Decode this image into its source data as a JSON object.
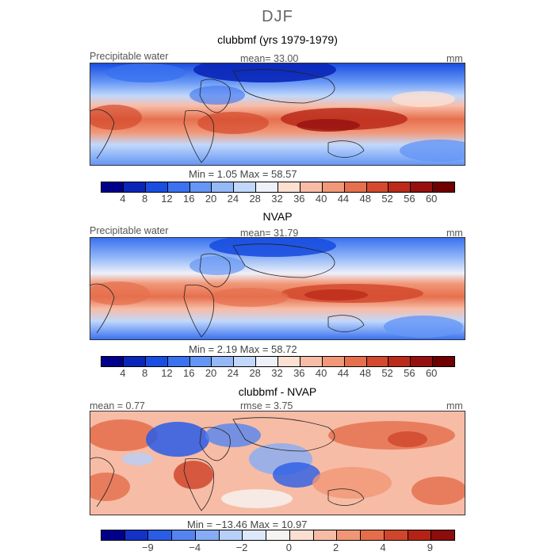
{
  "season_title": "DJF",
  "panels": [
    {
      "title": "clubbmf (yrs 1979-1979)",
      "left_label": "Precipitable water",
      "center_label": "mean=  33.00",
      "right_label": "mm",
      "min_max": "Min =    1.05  Max =   58.57"
    },
    {
      "title": "NVAP",
      "left_label": "Precipitable water",
      "center_label": "mean=  31.79",
      "right_label": "mm",
      "min_max": "Min =    2.19  Max =   58.72"
    },
    {
      "title": "clubbmf - NVAP",
      "left_label": "mean =   0.77",
      "center_label": "rmse =    3.75",
      "right_label": "mm",
      "min_max": "Min = −13.46  Max =   10.97"
    }
  ],
  "colorbars": {
    "full": {
      "colors": [
        "#00008b",
        "#0a26b8",
        "#1a4ee0",
        "#3a72f0",
        "#6596f5",
        "#95b9f7",
        "#c1d8fb",
        "#eef0fa",
        "#fce0d2",
        "#f8bca6",
        "#f19878",
        "#e6704e",
        "#d44a2e",
        "#bb2a1a",
        "#961010",
        "#6e0000"
      ],
      "ticks": [
        "4",
        "8",
        "12",
        "16",
        "20",
        "24",
        "28",
        "32",
        "36",
        "40",
        "44",
        "48",
        "52",
        "56",
        "60"
      ]
    },
    "diff": {
      "colors": [
        "#00008b",
        "#1232c8",
        "#2a5ce6",
        "#5484f0",
        "#86acf5",
        "#b7d0fa",
        "#dde8fb",
        "#f6f4f2",
        "#fbdfd0",
        "#f7bca5",
        "#f09676",
        "#e46d4b",
        "#d0462c",
        "#b42416",
        "#8d0c0c"
      ],
      "ticks": [
        "−9",
        "−4",
        "−2",
        "0",
        "2",
        "4",
        "9"
      ]
    }
  },
  "chart_data": [
    {
      "type": "heatmap",
      "title": "clubbmf (yrs 1979-1979)",
      "variable": "Precipitable water",
      "units": "mm",
      "mean": 33.0,
      "min": 1.05,
      "max": 58.57,
      "colorbar_ticks": [
        4,
        8,
        12,
        16,
        20,
        24,
        28,
        32,
        36,
        40,
        44,
        48,
        52,
        56,
        60
      ]
    },
    {
      "type": "heatmap",
      "title": "NVAP",
      "variable": "Precipitable water",
      "units": "mm",
      "mean": 31.79,
      "min": 2.19,
      "max": 58.72,
      "colorbar_ticks": [
        4,
        8,
        12,
        16,
        20,
        24,
        28,
        32,
        36,
        40,
        44,
        48,
        52,
        56,
        60
      ]
    },
    {
      "type": "heatmap",
      "title": "clubbmf - NVAP",
      "units": "mm",
      "mean": 0.77,
      "rmse": 3.75,
      "min": -13.46,
      "max": 10.97,
      "colorbar_ticks": [
        -9,
        -4,
        -2,
        0,
        2,
        4,
        9
      ]
    }
  ]
}
